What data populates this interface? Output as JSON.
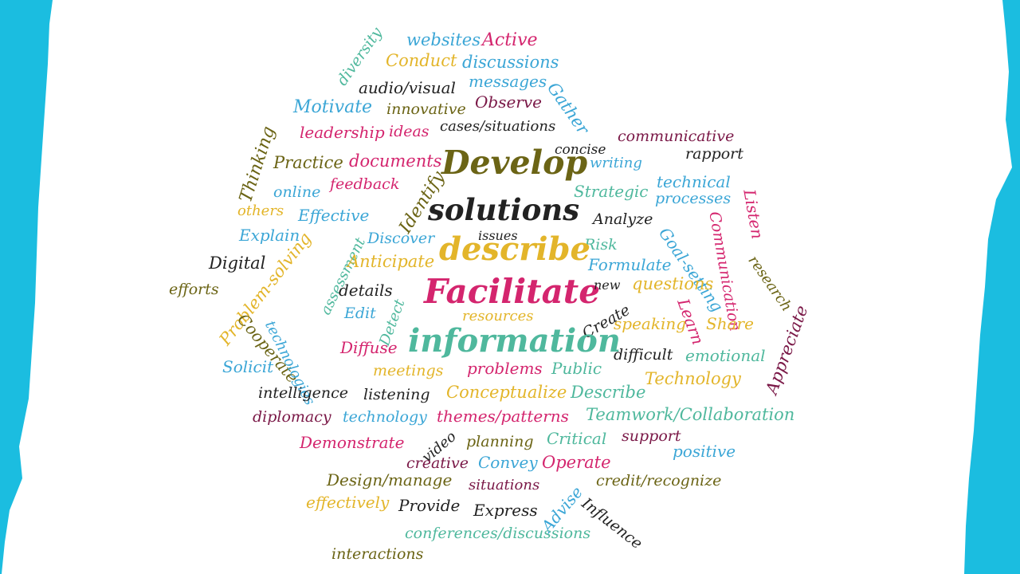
{
  "palette": {
    "background": "#1bbde0",
    "paper": "#ffffff",
    "pink": "#d4256e",
    "olive": "#6b6415",
    "gold": "#e3b52a",
    "sky": "#3ba6d6",
    "teal": "#4fb89d",
    "plum": "#7a1847",
    "black": "#222222"
  },
  "words": [
    {
      "text": "diversity",
      "color": "teal"
    },
    {
      "text": "websites",
      "color": "sky"
    },
    {
      "text": "Active",
      "color": "pink"
    },
    {
      "text": "Conduct",
      "color": "gold"
    },
    {
      "text": "discussions",
      "color": "sky"
    },
    {
      "text": "audio/visual",
      "color": "black"
    },
    {
      "text": "messages",
      "color": "sky"
    },
    {
      "text": "Gather",
      "color": "sky"
    },
    {
      "text": "Motivate",
      "color": "sky"
    },
    {
      "text": "innovative",
      "color": "olive"
    },
    {
      "text": "Observe",
      "color": "plum"
    },
    {
      "text": "leadership",
      "color": "pink"
    },
    {
      "text": "ideas",
      "color": "pink"
    },
    {
      "text": "cases/situations",
      "color": "black"
    },
    {
      "text": "Thinking",
      "color": "olive"
    },
    {
      "text": "communicative",
      "color": "plum"
    },
    {
      "text": "concise",
      "color": "black"
    },
    {
      "text": "rapport",
      "color": "black"
    },
    {
      "text": "Practice",
      "color": "olive"
    },
    {
      "text": "documents",
      "color": "pink"
    },
    {
      "text": "Develop",
      "color": "olive"
    },
    {
      "text": "writing",
      "color": "sky"
    },
    {
      "text": "technical",
      "color": "sky"
    },
    {
      "text": "online",
      "color": "sky"
    },
    {
      "text": "feedback",
      "color": "pink"
    },
    {
      "text": "Identify",
      "color": "olive"
    },
    {
      "text": "Strategic",
      "color": "teal"
    },
    {
      "text": "processes",
      "color": "sky"
    },
    {
      "text": "Listen",
      "color": "pink"
    },
    {
      "text": "others",
      "color": "gold"
    },
    {
      "text": "Effective",
      "color": "sky"
    },
    {
      "text": "solutions",
      "color": "black"
    },
    {
      "text": "Analyze",
      "color": "black"
    },
    {
      "text": "Communication",
      "color": "pink"
    },
    {
      "text": "Explain",
      "color": "sky"
    },
    {
      "text": "Discover",
      "color": "sky"
    },
    {
      "text": "issues",
      "color": "black"
    },
    {
      "text": "Risk",
      "color": "teal"
    },
    {
      "text": "Goal-setting",
      "color": "sky"
    },
    {
      "text": "research",
      "color": "olive"
    },
    {
      "text": "Digital",
      "color": "black"
    },
    {
      "text": "assessment",
      "color": "teal"
    },
    {
      "text": "Anticipate",
      "color": "gold"
    },
    {
      "text": "describe",
      "color": "gold"
    },
    {
      "text": "Formulate",
      "color": "sky"
    },
    {
      "text": "efforts",
      "color": "olive"
    },
    {
      "text": "Problem-solving",
      "color": "gold"
    },
    {
      "text": "details",
      "color": "black"
    },
    {
      "text": "Detect",
      "color": "teal"
    },
    {
      "text": "Facilitate",
      "color": "pink"
    },
    {
      "text": "new",
      "color": "black"
    },
    {
      "text": "questions",
      "color": "gold"
    },
    {
      "text": "Learn",
      "color": "pink"
    },
    {
      "text": "Edit",
      "color": "sky"
    },
    {
      "text": "resources",
      "color": "gold"
    },
    {
      "text": "Create",
      "color": "black"
    },
    {
      "text": "speaking",
      "color": "gold"
    },
    {
      "text": "Share",
      "color": "gold"
    },
    {
      "text": "Appreciate",
      "color": "plum"
    },
    {
      "text": "Cooperate",
      "color": "olive"
    },
    {
      "text": "technologies",
      "color": "sky"
    },
    {
      "text": "information",
      "color": "teal"
    },
    {
      "text": "Diffuse",
      "color": "pink"
    },
    {
      "text": "difficult",
      "color": "black"
    },
    {
      "text": "emotional",
      "color": "teal"
    },
    {
      "text": "Solicit",
      "color": "sky"
    },
    {
      "text": "meetings",
      "color": "gold"
    },
    {
      "text": "problems",
      "color": "pink"
    },
    {
      "text": "Public",
      "color": "teal"
    },
    {
      "text": "Technology",
      "color": "gold"
    },
    {
      "text": "intelligence",
      "color": "black"
    },
    {
      "text": "listening",
      "color": "black"
    },
    {
      "text": "Conceptualize",
      "color": "gold"
    },
    {
      "text": "Describe",
      "color": "teal"
    },
    {
      "text": "diplomacy",
      "color": "plum"
    },
    {
      "text": "technology",
      "color": "sky"
    },
    {
      "text": "themes/patterns",
      "color": "pink"
    },
    {
      "text": "Teamwork/Collaboration",
      "color": "teal"
    },
    {
      "text": "Demonstrate",
      "color": "pink"
    },
    {
      "text": "video",
      "color": "black"
    },
    {
      "text": "planning",
      "color": "olive"
    },
    {
      "text": "Critical",
      "color": "teal"
    },
    {
      "text": "support",
      "color": "plum"
    },
    {
      "text": "positive",
      "color": "sky"
    },
    {
      "text": "creative",
      "color": "plum"
    },
    {
      "text": "Convey",
      "color": "sky"
    },
    {
      "text": "Operate",
      "color": "pink"
    },
    {
      "text": "Design/manage",
      "color": "olive"
    },
    {
      "text": "situations",
      "color": "plum"
    },
    {
      "text": "credit/recognize",
      "color": "olive"
    },
    {
      "text": "effectively",
      "color": "gold"
    },
    {
      "text": "Provide",
      "color": "black"
    },
    {
      "text": "Express",
      "color": "black"
    },
    {
      "text": "Advise",
      "color": "sky"
    },
    {
      "text": "Influence",
      "color": "black"
    },
    {
      "text": "conferences/discussions",
      "color": "teal"
    },
    {
      "text": "interactions",
      "color": "olive"
    }
  ]
}
